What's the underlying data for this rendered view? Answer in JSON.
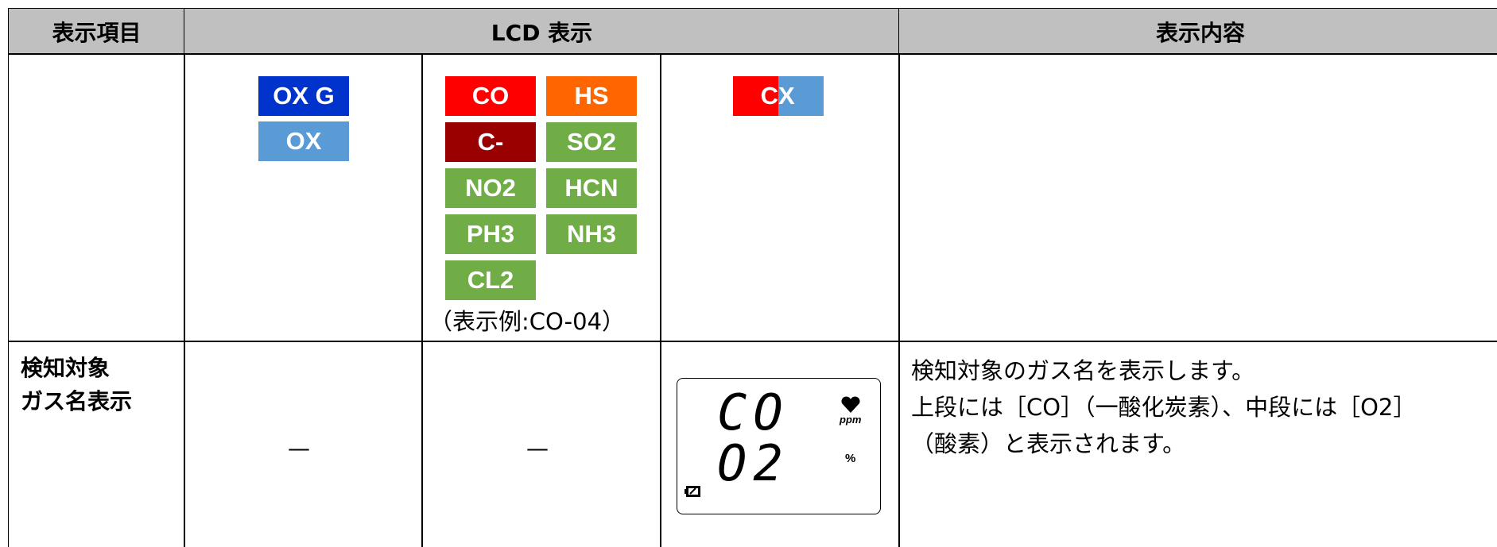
{
  "table": {
    "header": [
      "表示項目",
      "LCD 表示",
      "表示内容"
    ],
    "row1": {
      "panel1": [
        {
          "text": "OX G",
          "color": "#0033cc"
        },
        {
          "text": "OX",
          "color": "#5b9bd5"
        }
      ],
      "panel2": [
        {
          "text": "CO",
          "color": "#ff0000"
        },
        {
          "text": "HS",
          "color": "#ff6600"
        },
        {
          "text": "C-",
          "color": "#990000"
        },
        {
          "text": "SO2",
          "color": "#70ad47"
        },
        {
          "text": "NO2",
          "color": "#70ad47"
        },
        {
          "text": "HCN",
          "color": "#70ad47"
        },
        {
          "text": "PH3",
          "color": "#70ad47"
        },
        {
          "text": "NH3",
          "color": "#70ad47"
        },
        {
          "text": "CL2",
          "color": "#70ad47"
        }
      ],
      "panel2_caption": "（表示例:CO-04）",
      "panel3": [
        {
          "text": "C",
          "color": "#ff0000"
        },
        {
          "text": "X",
          "color": "#5b9bd5"
        }
      ]
    },
    "row2": {
      "item": [
        "検知対象",
        "ガス名表示"
      ],
      "panel1": "—",
      "panel2": "—",
      "lcd": {
        "upper": "CO",
        "lower": "O2",
        "upper_unit": "ppm",
        "lower_unit": "%"
      },
      "content": [
        "検知対象のガス名を表示します。",
        "上段には［CO］（一酸化炭素）、中段には［O2］",
        "（酸素）と表示されます。"
      ]
    }
  }
}
